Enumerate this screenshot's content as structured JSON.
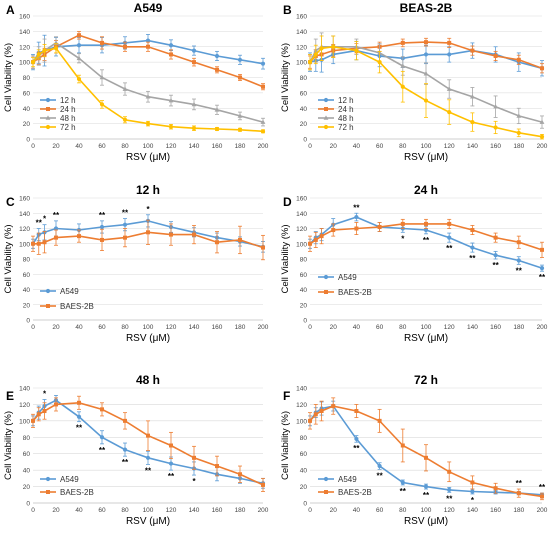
{
  "chart_data": [
    {
      "panel": "A",
      "title": "A549",
      "type": "line",
      "xlabel": "RSV (μM)",
      "ylabel": "Cell Viability (%)",
      "xlim": [
        0,
        200
      ],
      "ylim": [
        0,
        160
      ],
      "xticks": [
        0,
        20,
        40,
        60,
        80,
        100,
        120,
        140,
        160,
        180,
        200
      ],
      "yticks": [
        0,
        20,
        40,
        60,
        80,
        100,
        120,
        140,
        160
      ],
      "legend": "bottom-left",
      "legend_style": "grouped",
      "x": [
        0,
        5,
        10,
        20,
        40,
        60,
        80,
        100,
        120,
        140,
        160,
        180,
        200
      ],
      "series": [
        {
          "name": "12 h",
          "color": "#5b9bd5",
          "values": [
            100,
            112,
            115,
            120,
            122,
            122,
            125,
            128,
            122,
            115,
            108,
            103,
            98
          ],
          "errors": [
            10,
            14,
            20,
            12,
            10,
            10,
            8,
            8,
            7,
            6,
            6,
            6,
            7
          ]
        },
        {
          "name": "24 h",
          "color": "#ed7d31",
          "values": [
            100,
            105,
            110,
            120,
            135,
            125,
            120,
            120,
            110,
            100,
            90,
            80,
            68
          ],
          "errors": [
            8,
            8,
            8,
            8,
            5,
            8,
            6,
            6,
            6,
            5,
            4,
            4,
            4
          ]
        },
        {
          "name": "48 h",
          "color": "#a5a5a5",
          "values": [
            100,
            108,
            115,
            125,
            105,
            80,
            65,
            55,
            50,
            45,
            38,
            30,
            22
          ],
          "errors": [
            8,
            12,
            15,
            8,
            6,
            10,
            8,
            7,
            7,
            7,
            6,
            5,
            5
          ]
        },
        {
          "name": "72 h",
          "color": "#ffc000",
          "values": [
            100,
            110,
            115,
            118,
            78,
            45,
            25,
            20,
            16,
            14,
            13,
            12,
            10
          ],
          "errors": [
            6,
            6,
            8,
            6,
            5,
            5,
            4,
            3,
            3,
            3,
            2,
            2,
            2
          ]
        }
      ]
    },
    {
      "panel": "B",
      "title": "BEAS-2B",
      "type": "line",
      "xlabel": "RSV (μM)",
      "ylabel": "Cell Viability (%)",
      "xlim": [
        0,
        200
      ],
      "ylim": [
        0,
        160
      ],
      "xticks": [
        0,
        20,
        40,
        60,
        80,
        100,
        120,
        140,
        160,
        180,
        200
      ],
      "yticks": [
        0,
        20,
        40,
        60,
        80,
        100,
        120,
        140,
        160
      ],
      "legend": "bottom-left",
      "legend_style": "grouped",
      "x": [
        0,
        5,
        10,
        20,
        40,
        60,
        80,
        100,
        120,
        140,
        160,
        180,
        200
      ],
      "series": [
        {
          "name": "12 h",
          "color": "#5b9bd5",
          "values": [
            100,
            102,
            103,
            110,
            115,
            108,
            105,
            110,
            110,
            115,
            110,
            100,
            92
          ],
          "errors": [
            12,
            14,
            16,
            12,
            12,
            14,
            12,
            12,
            10,
            10,
            10,
            12,
            10
          ]
        },
        {
          "name": "24 h",
          "color": "#ed7d31",
          "values": [
            100,
            108,
            110,
            115,
            118,
            120,
            125,
            126,
            125,
            115,
            108,
            103,
            92
          ],
          "errors": [
            8,
            8,
            8,
            8,
            6,
            6,
            5,
            5,
            6,
            6,
            6,
            6,
            6
          ]
        },
        {
          "name": "48 h",
          "color": "#a5a5a5",
          "values": [
            100,
            115,
            120,
            120,
            120,
            112,
            95,
            85,
            65,
            55,
            42,
            30,
            22
          ],
          "errors": [
            10,
            15,
            18,
            14,
            10,
            12,
            12,
            14,
            12,
            12,
            14,
            10,
            8
          ]
        },
        {
          "name": "72 h",
          "color": "#ffc000",
          "values": [
            100,
            110,
            118,
            120,
            115,
            100,
            68,
            50,
            35,
            22,
            15,
            8,
            3
          ],
          "errors": [
            10,
            12,
            16,
            14,
            12,
            14,
            20,
            22,
            16,
            12,
            8,
            5,
            3
          ]
        }
      ]
    },
    {
      "panel": "C",
      "title": "12 h",
      "type": "line",
      "xlabel": "RSV (μM)",
      "ylabel": "Cell Viability (%)",
      "xlim": [
        0,
        200
      ],
      "ylim": [
        0,
        160
      ],
      "xticks": [
        0,
        20,
        40,
        60,
        80,
        100,
        120,
        140,
        160,
        180,
        200
      ],
      "yticks": [
        0,
        20,
        40,
        60,
        80,
        100,
        120,
        140,
        160
      ],
      "legend": "bottom-left",
      "legend_style": "stacked",
      "x": [
        0,
        5,
        10,
        20,
        40,
        60,
        80,
        100,
        120,
        140,
        160,
        180,
        200
      ],
      "series": [
        {
          "name": "A549",
          "color": "#5b9bd5",
          "values": [
            100,
            112,
            115,
            120,
            118,
            122,
            125,
            130,
            122,
            115,
            108,
            103,
            96
          ],
          "errors": [
            6,
            8,
            10,
            10,
            8,
            8,
            8,
            8,
            7,
            6,
            6,
            6,
            7
          ]
        },
        {
          "name": "BAES-2B",
          "color": "#ed7d31",
          "values": [
            100,
            100,
            102,
            108,
            110,
            105,
            108,
            115,
            112,
            112,
            102,
            105,
            95
          ],
          "errors": [
            10,
            14,
            14,
            10,
            8,
            14,
            12,
            16,
            14,
            12,
            14,
            18,
            16
          ]
        }
      ],
      "annotations": [
        {
          "x": 5,
          "text": "**"
        },
        {
          "x": 10,
          "text": "*"
        },
        {
          "x": 20,
          "text": "**"
        },
        {
          "x": 60,
          "text": "**"
        },
        {
          "x": 80,
          "text": "**"
        },
        {
          "x": 100,
          "text": "*"
        }
      ]
    },
    {
      "panel": "D",
      "title": "24 h",
      "type": "line",
      "xlabel": "RSV (μM)",
      "ylabel": "Cell Viability (%)",
      "xlim": [
        0,
        200
      ],
      "ylim": [
        0,
        160
      ],
      "xticks": [
        0,
        20,
        40,
        60,
        80,
        100,
        120,
        140,
        160,
        180,
        200
      ],
      "yticks": [
        0,
        20,
        40,
        60,
        80,
        100,
        120,
        140,
        160
      ],
      "legend": "bottom-left",
      "legend_style": "stacked",
      "x": [
        0,
        5,
        10,
        20,
        40,
        60,
        80,
        100,
        120,
        140,
        160,
        180,
        200
      ],
      "series": [
        {
          "name": "A549",
          "color": "#5b9bd5",
          "values": [
            100,
            108,
            112,
            125,
            135,
            122,
            120,
            118,
            108,
            95,
            85,
            78,
            68
          ],
          "errors": [
            6,
            8,
            8,
            8,
            5,
            6,
            5,
            5,
            6,
            6,
            5,
            5,
            4
          ]
        },
        {
          "name": "BAES-2B",
          "color": "#ed7d31",
          "values": [
            100,
            105,
            110,
            118,
            120,
            122,
            126,
            126,
            126,
            118,
            108,
            102,
            92
          ],
          "errors": [
            10,
            10,
            10,
            8,
            8,
            6,
            6,
            6,
            6,
            6,
            6,
            8,
            10
          ]
        }
      ],
      "annotations": [
        {
          "x": 40,
          "text": "**"
        },
        {
          "x": 80,
          "text": "*"
        },
        {
          "x": 100,
          "text": "**"
        },
        {
          "x": 120,
          "text": "**"
        },
        {
          "x": 140,
          "text": "**"
        },
        {
          "x": 160,
          "text": "**"
        },
        {
          "x": 180,
          "text": "**"
        },
        {
          "x": 200,
          "text": "**"
        }
      ]
    },
    {
      "panel": "E",
      "title": "48 h",
      "type": "line",
      "xlabel": "RSV (μM)",
      "ylabel": "Cell Viability (%)",
      "xlim": [
        0,
        200
      ],
      "ylim": [
        0,
        140
      ],
      "xticks": [
        0,
        20,
        40,
        60,
        80,
        100,
        120,
        140,
        160,
        180,
        200
      ],
      "yticks": [
        0,
        20,
        40,
        60,
        80,
        100,
        120,
        140
      ],
      "legend": "bottom-left",
      "legend_style": "stacked",
      "x": [
        0,
        5,
        10,
        20,
        40,
        60,
        80,
        100,
        120,
        140,
        160,
        180,
        200
      ],
      "series": [
        {
          "name": "A549",
          "color": "#5b9bd5",
          "values": [
            100,
            110,
            118,
            125,
            105,
            80,
            65,
            55,
            48,
            42,
            35,
            30,
            24
          ],
          "errors": [
            6,
            8,
            8,
            6,
            6,
            8,
            8,
            8,
            8,
            8,
            8,
            6,
            6
          ]
        },
        {
          "name": "BAES-2B",
          "color": "#ed7d31",
          "values": [
            100,
            108,
            112,
            120,
            122,
            114,
            100,
            82,
            70,
            55,
            45,
            35,
            22
          ],
          "errors": [
            8,
            8,
            10,
            8,
            8,
            8,
            10,
            18,
            16,
            14,
            12,
            10,
            8
          ]
        }
      ],
      "annotations": [
        {
          "x": 10,
          "text": "*"
        },
        {
          "x": 40,
          "text": "**"
        },
        {
          "x": 60,
          "text": "**"
        },
        {
          "x": 80,
          "text": "**"
        },
        {
          "x": 100,
          "text": "**"
        },
        {
          "x": 120,
          "text": "**"
        },
        {
          "x": 140,
          "text": "*"
        }
      ]
    },
    {
      "panel": "F",
      "title": "72 h",
      "type": "line",
      "xlabel": "RSV (μM)",
      "ylabel": "Cell Viability (%)",
      "xlim": [
        0,
        200
      ],
      "ylim": [
        0,
        140
      ],
      "xticks": [
        0,
        20,
        40,
        60,
        80,
        100,
        120,
        140,
        160,
        180,
        200
      ],
      "yticks": [
        0,
        20,
        40,
        60,
        80,
        100,
        120,
        140
      ],
      "legend": "bottom-left",
      "legend_style": "stacked",
      "x": [
        0,
        5,
        10,
        20,
        40,
        60,
        80,
        100,
        120,
        140,
        160,
        180,
        200
      ],
      "series": [
        {
          "name": "A549",
          "color": "#5b9bd5",
          "values": [
            100,
            110,
            115,
            118,
            78,
            45,
            25,
            20,
            16,
            14,
            13,
            12,
            10
          ],
          "errors": [
            6,
            6,
            8,
            6,
            4,
            4,
            3,
            3,
            3,
            3,
            2,
            2,
            2
          ]
        },
        {
          "name": "BAES-2B",
          "color": "#ed7d31",
          "values": [
            100,
            108,
            112,
            118,
            112,
            100,
            70,
            55,
            38,
            25,
            18,
            12,
            8
          ],
          "errors": [
            10,
            12,
            12,
            10,
            8,
            14,
            20,
            16,
            12,
            8,
            6,
            5,
            4
          ]
        }
      ],
      "annotations": [
        {
          "x": 40,
          "text": "**"
        },
        {
          "x": 60,
          "text": "**"
        },
        {
          "x": 80,
          "text": "**"
        },
        {
          "x": 100,
          "text": "**"
        },
        {
          "x": 120,
          "text": "**"
        },
        {
          "x": 140,
          "text": "*"
        },
        {
          "x": 180,
          "text": "**"
        },
        {
          "x": 200,
          "text": "**"
        }
      ]
    }
  ]
}
